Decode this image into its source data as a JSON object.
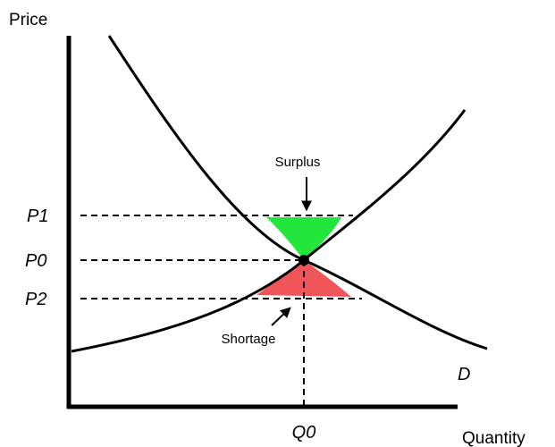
{
  "axes": {
    "y_label": "Price",
    "x_label": "Quantity"
  },
  "price_levels": [
    "P1",
    "P0",
    "P2"
  ],
  "quantity_levels": [
    "Q0"
  ],
  "curves": {
    "demand": "D"
  },
  "annotations": {
    "surplus": "Surplus",
    "shortage": "Shortage"
  }
}
